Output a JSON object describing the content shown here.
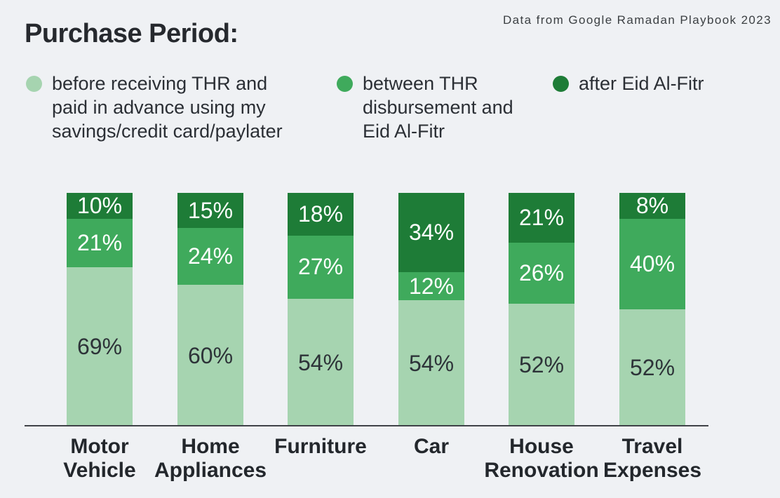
{
  "page": {
    "background": "#eff1f4"
  },
  "header": {
    "title": "Purchase Period:",
    "source": "Data from Google Ramadan Playbook 2023"
  },
  "legend": {
    "items": [
      {
        "color": "#a6d4b0",
        "lines": [
          "before receiving THR and",
          "paid in advance using my",
          "savings/credit card/paylater"
        ]
      },
      {
        "color": "#3faa5c",
        "lines": [
          "between THR",
          "disbursement and",
          "Eid Al-Fitr"
        ]
      },
      {
        "color": "#1e7c37",
        "lines": [
          "after Eid Al-Fitr"
        ]
      }
    ]
  },
  "chart_data": {
    "type": "bar",
    "stacked": true,
    "percent_stacked": true,
    "title": "Purchase Period:",
    "xlabel": "",
    "ylabel": "",
    "ylim": [
      0,
      100
    ],
    "grid": false,
    "legend_position": "top",
    "value_suffix": "%",
    "categories": [
      "Motor Vehicle",
      "Home Appliances",
      "Furniture",
      "Car",
      "House Renovation",
      "Travel Expenses"
    ],
    "category_label_lines": [
      [
        "Motor",
        "Vehicle"
      ],
      [
        "Home",
        "Appliances"
      ],
      [
        "Furniture"
      ],
      [
        "Car"
      ],
      [
        "House",
        "Renovation"
      ],
      [
        "Travel",
        "Expenses"
      ]
    ],
    "series": [
      {
        "name": "before receiving THR and paid in advance using my savings/credit card/paylater",
        "color": "#a6d4b0",
        "label_color": "#2d3338",
        "values": [
          69,
          60,
          54,
          54,
          52,
          52
        ]
      },
      {
        "name": "between THR disbursement and Eid Al-Fitr",
        "color": "#3faa5c",
        "label_color": "#ffffff",
        "values": [
          21,
          24,
          27,
          12,
          26,
          40
        ]
      },
      {
        "name": "after Eid Al-Fitr",
        "color": "#1e7c37",
        "label_color": "#ffffff",
        "values": [
          10,
          15,
          18,
          34,
          21,
          8
        ]
      }
    ]
  }
}
